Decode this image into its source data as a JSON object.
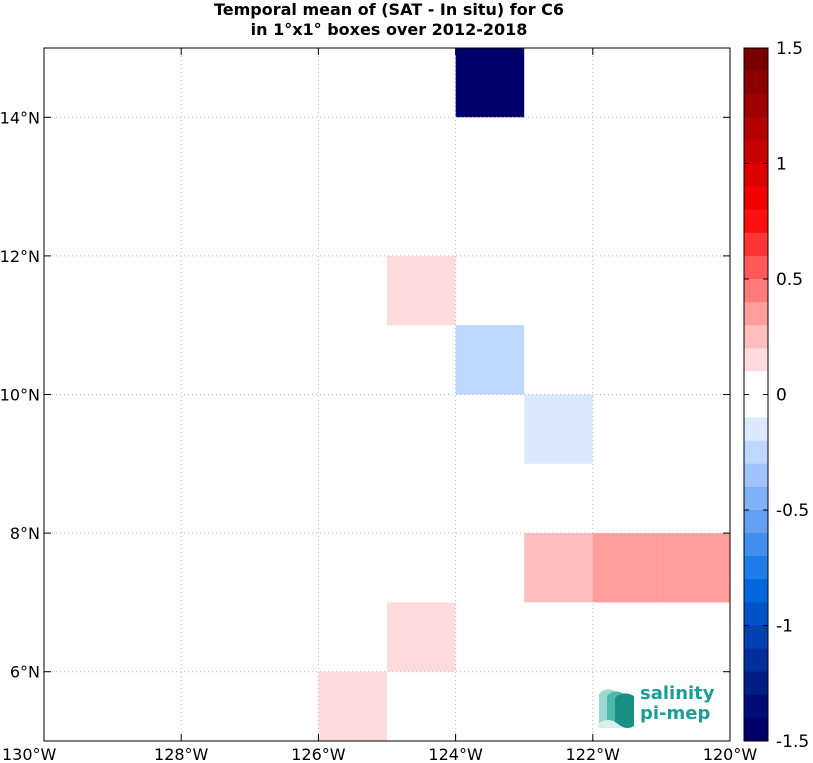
{
  "title": {
    "line1": "Temporal mean of (SAT - In situ) for C6",
    "line2": "in 1°x1° boxes over 2012-2018"
  },
  "logo": {
    "line1": "salinity",
    "line2": "pi-mep",
    "color": "#1a9e96"
  },
  "chart_data": {
    "type": "heatmap",
    "title": "Temporal mean of (SAT - In situ) for C6 in 1°x1° boxes over 2012-2018",
    "xlim": [
      -130,
      -120
    ],
    "ylim": [
      5,
      15
    ],
    "grid": true,
    "x_ticks": [
      {
        "value": -130,
        "label": "130°W"
      },
      {
        "value": -128,
        "label": "128°W"
      },
      {
        "value": -126,
        "label": "126°W"
      },
      {
        "value": -124,
        "label": "124°W"
      },
      {
        "value": -122,
        "label": "122°W"
      },
      {
        "value": -120,
        "label": "120°W"
      }
    ],
    "y_ticks": [
      {
        "value": 6,
        "label": "6°N"
      },
      {
        "value": 8,
        "label": "8°N"
      },
      {
        "value": 10,
        "label": "10°N"
      },
      {
        "value": 12,
        "label": "12°N"
      },
      {
        "value": 14,
        "label": "14°N"
      }
    ],
    "cells": [
      {
        "lon_min": -124,
        "lon_max": -123,
        "lat_min": 14,
        "lat_max": 15,
        "value": -1.4
      },
      {
        "lon_min": -125,
        "lon_max": -124,
        "lat_min": 11,
        "lat_max": 12,
        "value": 0.15
      },
      {
        "lon_min": -124,
        "lon_max": -123,
        "lat_min": 10,
        "lat_max": 11,
        "value": -0.25
      },
      {
        "lon_min": -123,
        "lon_max": -122,
        "lat_min": 9,
        "lat_max": 10,
        "value": -0.15
      },
      {
        "lon_min": -123,
        "lon_max": -122,
        "lat_min": 7,
        "lat_max": 8,
        "value": 0.25
      },
      {
        "lon_min": -122,
        "lon_max": -121,
        "lat_min": 7,
        "lat_max": 8,
        "value": 0.4
      },
      {
        "lon_min": -121,
        "lon_max": -120,
        "lat_min": 7,
        "lat_max": 8,
        "value": 0.4
      },
      {
        "lon_min": -125,
        "lon_max": -124,
        "lat_min": 6,
        "lat_max": 7,
        "value": 0.15
      },
      {
        "lon_min": -126,
        "lon_max": -125,
        "lat_min": 5,
        "lat_max": 6,
        "value": 0.15
      }
    ],
    "colorbar": {
      "range": [
        -1.5,
        1.5
      ],
      "ticks": [
        {
          "value": 1.5,
          "label": "1.5"
        },
        {
          "value": 1,
          "label": "1"
        },
        {
          "value": 0.5,
          "label": "0.5"
        },
        {
          "value": 0,
          "label": "0"
        },
        {
          "value": -0.5,
          "label": "-0.5"
        },
        {
          "value": -1,
          "label": "-1"
        },
        {
          "value": -1.5,
          "label": "-1.5"
        }
      ],
      "colors_top_to_bottom": [
        "#7a0000",
        "#8c0000",
        "#a00000",
        "#b40000",
        "#c80000",
        "#dc0000",
        "#f00000",
        "#ff1010",
        "#ff3434",
        "#ff5858",
        "#ff7b7b",
        "#ff9d9d",
        "#ffbdbd",
        "#ffdcdc",
        "#ffffff",
        "#ffffff",
        "#dbe9ff",
        "#bdd7ff",
        "#9fc4fb",
        "#80b2f7",
        "#61a0f4",
        "#418eef",
        "#1f7cea",
        "#0066de",
        "#0053c6",
        "#0040b0",
        "#002e9a",
        "#001d86",
        "#000c75",
        "#00006a"
      ]
    }
  }
}
